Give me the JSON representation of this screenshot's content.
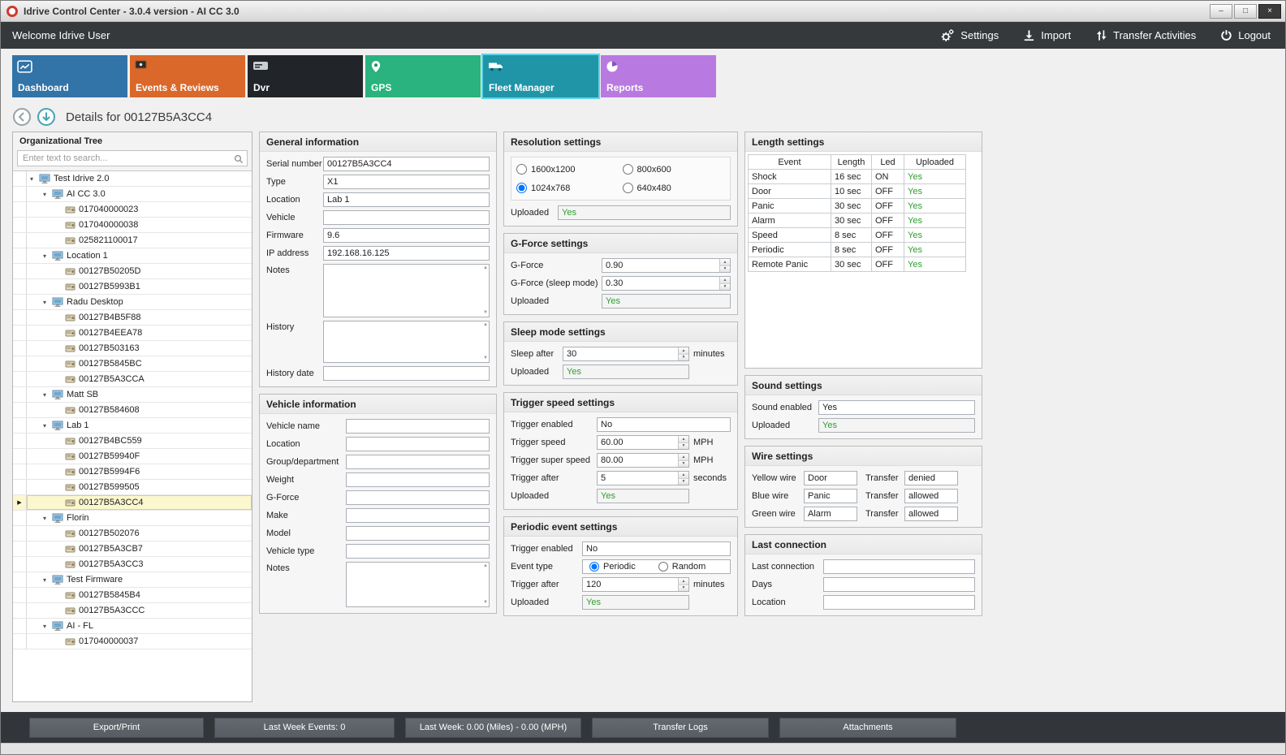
{
  "window": {
    "title": "Idrive Control Center - 3.0.4 version - AI CC 3.0"
  },
  "topbar": {
    "welcome": "Welcome Idrive User",
    "actions": [
      {
        "label": "Settings"
      },
      {
        "label": "Import"
      },
      {
        "label": "Transfer Activities"
      },
      {
        "label": "Logout"
      }
    ]
  },
  "tabs": [
    {
      "label": "Dashboard",
      "color": "#3273a8",
      "selected": false
    },
    {
      "label": "Events & Reviews",
      "color": "#d9682a",
      "selected": false
    },
    {
      "label": "Dvr",
      "color": "#212529",
      "selected": false
    },
    {
      "label": "GPS",
      "color": "#2ab37e",
      "selected": false
    },
    {
      "label": "Fleet Manager",
      "color": "#2095a8",
      "selected": true
    },
    {
      "label": "Reports",
      "color": "#b87ae0",
      "selected": false
    }
  ],
  "details": {
    "title": "Details for 00127B5A3CC4"
  },
  "tree": {
    "title": "Organizational Tree",
    "search_placeholder": "Enter text to search...",
    "selected": "00127B5A3CC4",
    "nodes": [
      {
        "label": "Test Idrive 2.0",
        "level": 0,
        "type": "group"
      },
      {
        "label": "AI CC 3.0",
        "level": 1,
        "type": "group"
      },
      {
        "label": "017040000023",
        "level": 2,
        "type": "device"
      },
      {
        "label": "017040000038",
        "level": 2,
        "type": "device"
      },
      {
        "label": "025821100017",
        "level": 2,
        "type": "device"
      },
      {
        "label": "Location 1",
        "level": 1,
        "type": "group"
      },
      {
        "label": "00127B50205D",
        "level": 2,
        "type": "device"
      },
      {
        "label": "00127B5993B1",
        "level": 2,
        "type": "device"
      },
      {
        "label": "Radu Desktop",
        "level": 1,
        "type": "group"
      },
      {
        "label": "00127B4B5F88",
        "level": 2,
        "type": "device"
      },
      {
        "label": "00127B4EEA78",
        "level": 2,
        "type": "device"
      },
      {
        "label": "00127B503163",
        "level": 2,
        "type": "device"
      },
      {
        "label": "00127B5845BC",
        "level": 2,
        "type": "device"
      },
      {
        "label": "00127B5A3CCA",
        "level": 2,
        "type": "device"
      },
      {
        "label": "Matt SB",
        "level": 1,
        "type": "group"
      },
      {
        "label": "00127B584608",
        "level": 2,
        "type": "device"
      },
      {
        "label": "Lab 1",
        "level": 1,
        "type": "group"
      },
      {
        "label": "00127B4BC559",
        "level": 2,
        "type": "device"
      },
      {
        "label": "00127B59940F",
        "level": 2,
        "type": "device"
      },
      {
        "label": "00127B5994F6",
        "level": 2,
        "type": "device"
      },
      {
        "label": "00127B599505",
        "level": 2,
        "type": "device"
      },
      {
        "label": "00127B5A3CC4",
        "level": 2,
        "type": "device"
      },
      {
        "label": "Florin",
        "level": 1,
        "type": "group"
      },
      {
        "label": "00127B502076",
        "level": 2,
        "type": "device"
      },
      {
        "label": "00127B5A3CB7",
        "level": 2,
        "type": "device"
      },
      {
        "label": "00127B5A3CC3",
        "level": 2,
        "type": "device"
      },
      {
        "label": "Test Firmware",
        "level": 1,
        "type": "group"
      },
      {
        "label": "00127B5845B4",
        "level": 2,
        "type": "device"
      },
      {
        "label": "00127B5A3CCC",
        "level": 2,
        "type": "device"
      },
      {
        "label": "AI - FL",
        "level": 1,
        "type": "group"
      },
      {
        "label": "017040000037",
        "level": 2,
        "type": "device"
      }
    ]
  },
  "general": {
    "title": "General information",
    "fields": [
      {
        "label": "Serial number",
        "value": "00127B5A3CC4"
      },
      {
        "label": "Type",
        "value": "X1"
      },
      {
        "label": "Location",
        "value": "Lab 1"
      },
      {
        "label": "Vehicle",
        "value": ""
      },
      {
        "label": "Firmware",
        "value": "9.6"
      },
      {
        "label": "IP address",
        "value": "192.168.16.125"
      }
    ],
    "notes_label": "Notes",
    "notes": "",
    "history_label": "History",
    "history": "",
    "history_date_label": "History date",
    "history_date": ""
  },
  "vehicle": {
    "title": "Vehicle information",
    "fields": [
      {
        "label": "Vehicle name",
        "value": ""
      },
      {
        "label": "Location",
        "value": ""
      },
      {
        "label": "Group/department",
        "value": ""
      },
      {
        "label": "Weight",
        "value": ""
      },
      {
        "label": "G-Force",
        "value": ""
      },
      {
        "label": "Make",
        "value": ""
      },
      {
        "label": "Model",
        "value": ""
      },
      {
        "label": "Vehicle type",
        "value": ""
      }
    ],
    "notes_label": "Notes",
    "notes": ""
  },
  "resolution": {
    "title": "Resolution settings",
    "options": [
      {
        "label": "1600x1200",
        "checked": false
      },
      {
        "label": "800x600",
        "checked": false
      },
      {
        "label": "1024x768",
        "checked": true
      },
      {
        "label": "640x480",
        "checked": false
      }
    ],
    "uploaded_label": "Uploaded",
    "uploaded": "Yes"
  },
  "gforce": {
    "title": "G-Force settings",
    "rows": [
      {
        "label": "G-Force",
        "value": "0.90"
      },
      {
        "label": "G-Force (sleep mode)",
        "value": "0.30"
      }
    ],
    "uploaded_label": "Uploaded",
    "uploaded": "Yes"
  },
  "sleep": {
    "title": "Sleep mode settings",
    "after_label": "Sleep after",
    "after": "30",
    "after_suffix": "minutes",
    "uploaded_label": "Uploaded",
    "uploaded": "Yes"
  },
  "trigger_speed": {
    "title": "Trigger speed settings",
    "enabled_label": "Trigger enabled",
    "enabled": "No",
    "rows": [
      {
        "label": "Trigger speed",
        "value": "60.00",
        "suffix": "MPH"
      },
      {
        "label": "Trigger super speed",
        "value": "80.00",
        "suffix": "MPH"
      },
      {
        "label": "Trigger after",
        "value": "5",
        "suffix": "seconds"
      }
    ],
    "uploaded_label": "Uploaded",
    "uploaded": "Yes"
  },
  "periodic": {
    "title": "Periodic event settings",
    "enabled_label": "Trigger enabled",
    "enabled": "No",
    "event_type_label": "Event type",
    "event_options": [
      {
        "label": "Periodic",
        "checked": true
      },
      {
        "label": "Random",
        "checked": false
      }
    ],
    "after_label": "Trigger after",
    "after": "120",
    "after_suffix": "minutes",
    "uploaded_label": "Uploaded",
    "uploaded": "Yes"
  },
  "length": {
    "title": "Length settings",
    "columns": [
      "Event",
      "Length",
      "Led",
      "Uploaded"
    ],
    "rows": [
      [
        "Shock",
        "16 sec",
        "ON",
        "Yes"
      ],
      [
        "Door",
        "10 sec",
        "OFF",
        "Yes"
      ],
      [
        "Panic",
        "30 sec",
        "OFF",
        "Yes"
      ],
      [
        "Alarm",
        "30 sec",
        "OFF",
        "Yes"
      ],
      [
        "Speed",
        "8 sec",
        "OFF",
        "Yes"
      ],
      [
        "Periodic",
        "8 sec",
        "OFF",
        "Yes"
      ],
      [
        "Remote Panic",
        "30 sec",
        "OFF",
        "Yes"
      ]
    ]
  },
  "sound": {
    "title": "Sound settings",
    "enabled_label": "Sound enabled",
    "enabled": "Yes",
    "uploaded_label": "Uploaded",
    "uploaded": "Yes"
  },
  "wires": {
    "title": "Wire settings",
    "transfer_label": "Transfer",
    "rows": [
      {
        "label": "Yellow wire",
        "value": "Door",
        "transfer": "denied"
      },
      {
        "label": "Blue wire",
        "value": "Panic",
        "transfer": "allowed"
      },
      {
        "label": "Green wire",
        "value": "Alarm",
        "transfer": "allowed"
      }
    ]
  },
  "last_connection": {
    "title": "Last connection",
    "rows": [
      {
        "label": "Last connection",
        "value": ""
      },
      {
        "label": "Days",
        "value": ""
      },
      {
        "label": "Location",
        "value": ""
      }
    ]
  },
  "bottom": {
    "buttons": [
      "Export/Print",
      "Last Week Events: 0",
      "Last Week: 0.00 (Miles) - 0.00 (MPH)",
      "Transfer Logs",
      "Attachments"
    ]
  },
  "colors": {
    "green": "#2f9e2f",
    "selected_tab_border": "#5fd3e8"
  }
}
